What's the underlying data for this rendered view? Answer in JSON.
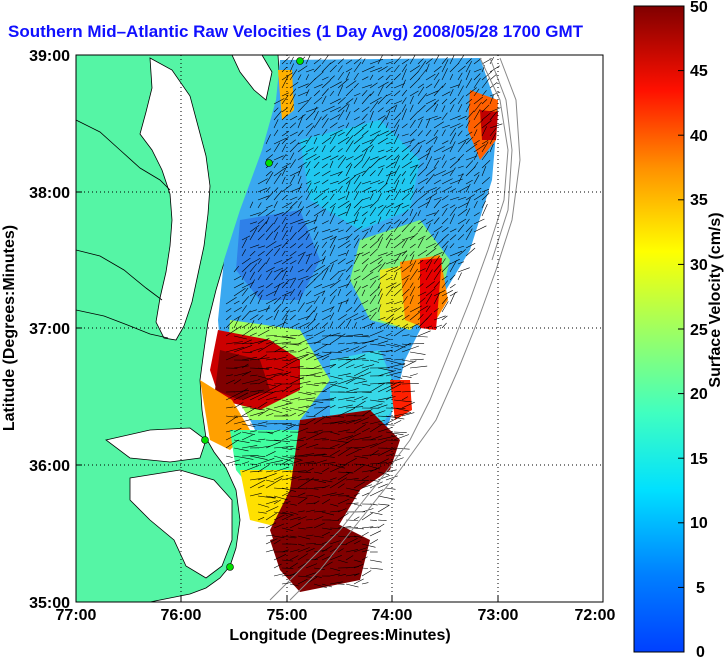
{
  "title": "Southern Mid–Atlantic Raw Velocities (1 Day Avg) 2008/05/28 1700 GMT",
  "map": {
    "x_ticks": [
      "77:00",
      "76:00",
      "75:00",
      "74:00",
      "73:00",
      "72:00"
    ],
    "y_ticks": [
      "39:00",
      "38:00",
      "37:00",
      "36:00",
      "35:00"
    ],
    "xlabel": "Longitude (Degrees:Minutes)",
    "ylabel": "Latitude (Degrees:Minutes)",
    "lon_range": [
      -77,
      -72
    ],
    "lat_range": [
      35,
      39
    ],
    "land_color": "#55f5a5",
    "grid": "dotted"
  },
  "colorbar": {
    "label": "Surface Velocity (cm/s)",
    "ticks": [
      "50",
      "45",
      "40",
      "35",
      "30",
      "25",
      "20",
      "15",
      "10",
      "5",
      "0"
    ],
    "range": [
      0,
      50
    ],
    "colormap": "jet"
  }
}
